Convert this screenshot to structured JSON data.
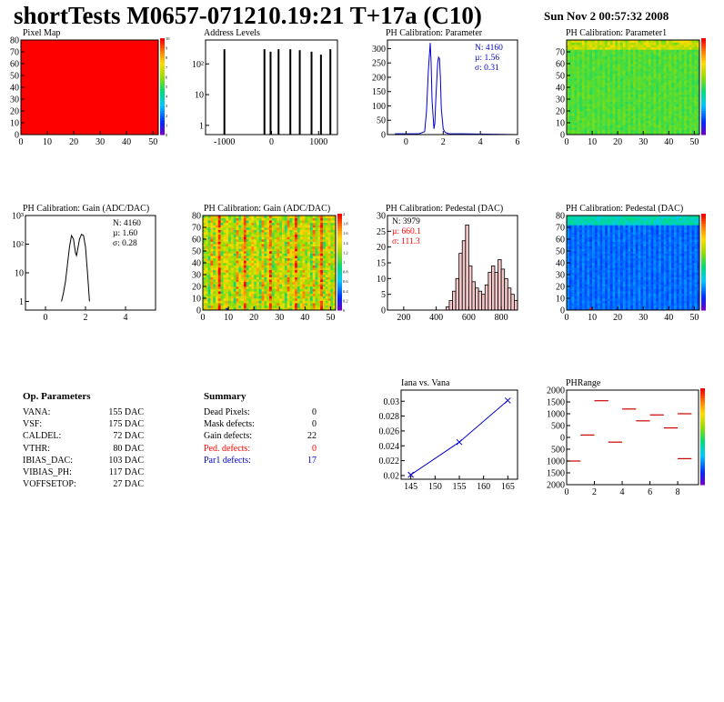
{
  "header": {
    "title": "shortTests M0657-071210.19:21 T+17a (C10)",
    "date": "Sun Nov  2 00:57:32 2008"
  },
  "colors": {
    "red": "#ff0000",
    "blue": "#0000cc",
    "black": "#000000"
  },
  "panels": {
    "pixel_map": {
      "title": "Pixel Map",
      "scale_ticks": [
        "10",
        "9",
        "8",
        "7",
        "6",
        "5",
        "4",
        "3",
        "2",
        "1",
        "0"
      ]
    },
    "address_levels": {
      "title": "Address Levels"
    },
    "ph_param": {
      "title": "PH Calibration: Parameter",
      "stat_n": "N: 4160",
      "stat_mu": "µ: 1.56",
      "stat_sigma": "σ: 0.31"
    },
    "ph_param1": {
      "title": "PH Calibration: Parameter1"
    },
    "gain_hist": {
      "title": "PH Calibration: Gain (ADC/DAC)",
      "stat_n": "N: 4160",
      "stat_mu": "µ: 1.60",
      "stat_sigma": "σ: 0.28"
    },
    "gain_map": {
      "title": "PH Calibration: Gain (ADC/DAC)"
    },
    "pedestal_hist": {
      "title": "PH Calibration: Pedestal (DAC)",
      "stat_n": "N: 3979",
      "stat_mu": "µ: 660.1",
      "stat_sigma": "σ: 111.3"
    },
    "pedestal_map": {
      "title": "PH Calibration: Pedestal (DAC)"
    },
    "iana": {
      "title": "Iana vs. Vana"
    },
    "phrange": {
      "title": "PHRange"
    }
  },
  "op_params": {
    "heading": "Op. Parameters",
    "rows": [
      {
        "name": "VANA:",
        "value": "155 DAC"
      },
      {
        "name": "VSF:",
        "value": "175 DAC"
      },
      {
        "name": "CALDEL:",
        "value": "72 DAC"
      },
      {
        "name": "VTHR:",
        "value": "80 DAC"
      },
      {
        "name": "IBIAS_DAC:",
        "value": "103 DAC"
      },
      {
        "name": "VIBIAS_PH:",
        "value": "117 DAC"
      },
      {
        "name": "VOFFSETOP:",
        "value": "27 DAC"
      }
    ]
  },
  "summary": {
    "heading": "Summary",
    "rows": [
      {
        "name": "Dead Pixels:",
        "value": "0",
        "color": "#000000"
      },
      {
        "name": "Mask defects:",
        "value": "0",
        "color": "#000000"
      },
      {
        "name": "Gain defects:",
        "value": "22",
        "color": "#000000"
      },
      {
        "name": "Ped. defects:",
        "value": "0",
        "color": "#ff0000"
      },
      {
        "name": "Par1 defects:",
        "value": "17",
        "color": "#0000cc"
      }
    ]
  },
  "chart_data": [
    {
      "type": "heatmap",
      "name": "pixel_map",
      "xlim": [
        0,
        52
      ],
      "ylim": [
        0,
        80
      ],
      "xticks": [
        0,
        10,
        20,
        30,
        40,
        50
      ],
      "yticks": [
        0,
        10,
        20,
        30,
        40,
        50,
        60,
        70,
        80
      ],
      "fill_color": "#ff0000"
    },
    {
      "type": "bar",
      "name": "address_levels",
      "log_y": true,
      "xlim": [
        -1400,
        1400
      ],
      "ylim": [
        0.5,
        600
      ],
      "xticks": [
        -1000,
        0,
        1000
      ],
      "yticks": [
        1,
        10,
        100
      ],
      "ytick_labels": [
        "1",
        "10",
        "10²"
      ],
      "peaks": [
        {
          "x": -1000,
          "y": 300
        },
        {
          "x": -150,
          "y": 300
        },
        {
          "x": -20,
          "y": 250
        },
        {
          "x": 150,
          "y": 300
        },
        {
          "x": 400,
          "y": 300
        },
        {
          "x": 600,
          "y": 280
        },
        {
          "x": 850,
          "y": 250
        },
        {
          "x": 1050,
          "y": 200
        },
        {
          "x": 1250,
          "y": 300
        }
      ]
    },
    {
      "type": "line",
      "name": "ph_param",
      "xlim": [
        -1,
        6
      ],
      "ylim": [
        0,
        330
      ],
      "xticks": [
        0,
        2,
        4,
        6
      ],
      "yticks": [
        0,
        50,
        100,
        150,
        200,
        250,
        300
      ],
      "x": [
        -0.6,
        0.7,
        1.0,
        1.1,
        1.2,
        1.3,
        1.35,
        1.4,
        1.5,
        1.55,
        1.6,
        1.7,
        1.75,
        1.8,
        1.85,
        1.9,
        2.0,
        2.1,
        2.3,
        3.0,
        6.0
      ],
      "y": [
        3,
        3,
        10,
        80,
        220,
        320,
        250,
        120,
        20,
        40,
        120,
        250,
        270,
        265,
        200,
        90,
        20,
        8,
        3,
        3,
        0
      ]
    },
    {
      "type": "heatmap",
      "name": "ph_param1",
      "xlim": [
        0,
        52
      ],
      "ylim": [
        0,
        80
      ],
      "xticks": [
        0,
        10,
        20,
        30,
        40,
        50
      ],
      "yticks": [
        0,
        10,
        20,
        30,
        40,
        50,
        60,
        70
      ],
      "dominant_color": "#22cc44"
    },
    {
      "type": "line",
      "name": "gain_hist",
      "log_y": true,
      "xlim": [
        -1,
        5.5
      ],
      "ylim": [
        0.5,
        1000
      ],
      "xticks": [
        0,
        2,
        4
      ],
      "yticks": [
        1,
        10,
        100,
        1000
      ],
      "ytick_labels": [
        "1",
        "10",
        "10²",
        "10³"
      ],
      "x": [
        0.8,
        0.9,
        1.0,
        1.1,
        1.2,
        1.3,
        1.4,
        1.5,
        1.55,
        1.6,
        1.7,
        1.8,
        1.9,
        2.0,
        2.1,
        2.2
      ],
      "y": [
        1,
        2,
        5,
        20,
        80,
        200,
        150,
        50,
        40,
        60,
        150,
        220,
        200,
        80,
        10,
        1
      ]
    },
    {
      "type": "heatmap",
      "name": "gain_map",
      "xlim": [
        0,
        52
      ],
      "ylim": [
        0,
        80
      ],
      "xticks": [
        0,
        10,
        20,
        30,
        40,
        50
      ],
      "yticks": [
        0,
        10,
        20,
        30,
        40,
        50,
        60,
        70,
        80
      ],
      "scale_ticks": [
        "2",
        "1.8",
        "1.6",
        "1.4",
        "1.2",
        "1",
        "0.8",
        "0.6",
        "0.4",
        "0.2",
        "0"
      ]
    },
    {
      "type": "bar",
      "name": "pedestal_hist",
      "xlim": [
        100,
        900
      ],
      "ylim": [
        0,
        30
      ],
      "xticks": [
        200,
        400,
        600,
        800
      ],
      "yticks": [
        0,
        5,
        10,
        15,
        20,
        25,
        30
      ],
      "x": [
        460,
        480,
        500,
        520,
        540,
        560,
        580,
        600,
        620,
        640,
        660,
        680,
        700,
        720,
        740,
        760,
        780,
        800,
        820,
        840,
        860,
        880
      ],
      "y": [
        1,
        3,
        6,
        10,
        18,
        22,
        27,
        14,
        9,
        7,
        6,
        5,
        8,
        12,
        14,
        12,
        16,
        13,
        10,
        7,
        5,
        3
      ]
    },
    {
      "type": "heatmap",
      "name": "pedestal_map",
      "xlim": [
        0,
        52
      ],
      "ylim": [
        0,
        80
      ],
      "xticks": [
        0,
        10,
        20,
        30,
        40,
        50
      ],
      "yticks": [
        0,
        10,
        20,
        30,
        40,
        50,
        60,
        70,
        80
      ],
      "dominant_color": "#2255ee"
    },
    {
      "type": "line",
      "name": "iana",
      "xlim": [
        143,
        167
      ],
      "ylim": [
        0.0195,
        0.0315
      ],
      "xticks": [
        145,
        150,
        155,
        160,
        165
      ],
      "yticks": [
        0.02,
        0.022,
        0.024,
        0.026,
        0.028,
        0.03
      ],
      "x": [
        145,
        155,
        165
      ],
      "y": [
        0.0201,
        0.0245,
        0.0301
      ]
    },
    {
      "type": "heatmap",
      "name": "phrange",
      "xlim": [
        0,
        9.5
      ],
      "ylim": [
        -2000,
        2000
      ],
      "xticks": [
        0,
        2,
        4,
        6,
        8
      ],
      "yticks": [
        -2000,
        -1500,
        -1000,
        -500,
        0,
        500,
        1000,
        1500,
        2000
      ],
      "ytick_labels": [
        "2000",
        "1500",
        "1000",
        "500",
        "0",
        "500",
        "1000",
        "1500",
        "2000"
      ],
      "segments": [
        {
          "x0": 0,
          "x1": 1,
          "y": -1000
        },
        {
          "x0": 1,
          "x1": 2,
          "y": 100
        },
        {
          "x0": 2,
          "x1": 3,
          "y": 1550
        },
        {
          "x0": 3,
          "x1": 4,
          "y": -200
        },
        {
          "x0": 4,
          "x1": 5,
          "y": 1200
        },
        {
          "x0": 5,
          "x1": 6,
          "y": 700
        },
        {
          "x0": 6,
          "x1": 7,
          "y": 950
        },
        {
          "x0": 7,
          "x1": 8,
          "y": 400
        },
        {
          "x0": 8,
          "x1": 9,
          "y": 1000
        },
        {
          "x0": 8,
          "x1": 9,
          "y": -900
        }
      ]
    }
  ]
}
